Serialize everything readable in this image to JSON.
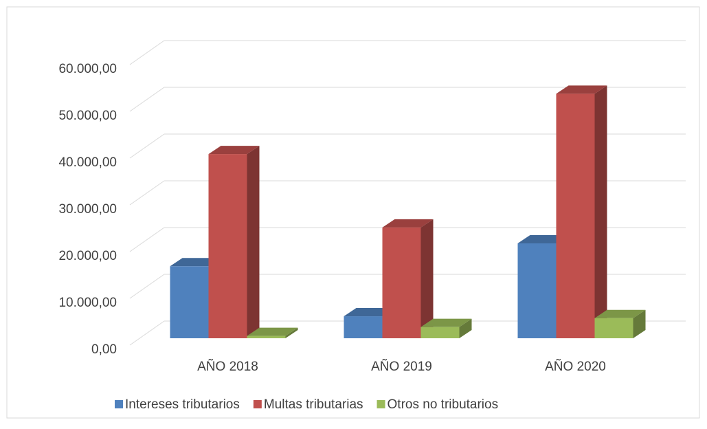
{
  "chart_data": {
    "type": "bar3d",
    "categories": [
      "AÑO 2018",
      "AÑO 2019",
      "AÑO 2020"
    ],
    "series": [
      {
        "name": "Intereses tributarios",
        "color": "#4f81bd",
        "values": [
          15400,
          4700,
          20300
        ]
      },
      {
        "name": "Multas tributarias",
        "color": "#c0504d",
        "values": [
          39400,
          23700,
          52300
        ]
      },
      {
        "name": "Otros no tributarios",
        "color": "#9bbb59",
        "values": [
          500,
          2400,
          4300
        ]
      }
    ],
    "ylim": [
      0,
      60000
    ],
    "yticks": [
      {
        "value": 0,
        "label": "0,00"
      },
      {
        "value": 10000,
        "label": "10.000,00"
      },
      {
        "value": 20000,
        "label": "20.000,00"
      },
      {
        "value": 30000,
        "label": "30.000,00"
      },
      {
        "value": 40000,
        "label": "40.000,00"
      },
      {
        "value": 50000,
        "label": "50.000,00"
      },
      {
        "value": 60000,
        "label": "60.000,00"
      }
    ],
    "grid": true,
    "legend": "bottom"
  }
}
